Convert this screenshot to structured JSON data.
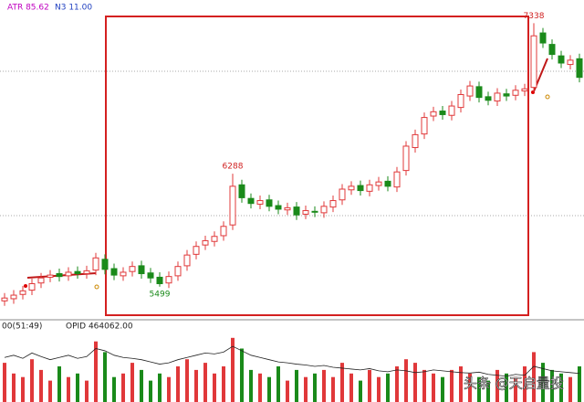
{
  "chart_data": {
    "type": "candlestick",
    "indicators": [
      "ATR 85.62",
      "N3 11.00"
    ],
    "lower_labels": [
      "00(51:49)",
      "OPID 464062.00"
    ],
    "watermark": "头条 @天启量投",
    "open": [
      5400,
      5415,
      5445,
      5475,
      5525,
      5565,
      5590,
      5575,
      5605,
      5590,
      5615,
      5690,
      5625,
      5575,
      5605,
      5645,
      5595,
      5565,
      5525,
      5575,
      5645,
      5725,
      5790,
      5815,
      5855,
      5930,
      6210,
      6115,
      6075,
      6105,
      6065,
      6035,
      6055,
      6005,
      6025,
      6015,
      6055,
      6105,
      6175,
      6205,
      6165,
      6205,
      6235,
      6195,
      6310,
      6470,
      6565,
      6690,
      6725,
      6695,
      6750,
      6830,
      6895,
      6825,
      6795,
      6845,
      6835,
      6865,
      6890,
      7270,
      7190,
      7110,
      7050,
      7090
    ],
    "high": [
      5455,
      5475,
      5505,
      5555,
      5595,
      5615,
      5625,
      5635,
      5640,
      5645,
      5735,
      5725,
      5660,
      5635,
      5675,
      5680,
      5630,
      5600,
      5605,
      5675,
      5755,
      5815,
      5855,
      5885,
      5955,
      6288,
      6245,
      6150,
      6135,
      6140,
      6100,
      6085,
      6090,
      6065,
      6060,
      6095,
      6135,
      6215,
      6235,
      6240,
      6245,
      6265,
      6270,
      6335,
      6515,
      6595,
      6715,
      6755,
      6760,
      6795,
      6875,
      6935,
      6930,
      6860,
      6885,
      6880,
      6905,
      6915,
      7338,
      7305,
      7225,
      7145,
      7115,
      7125
    ],
    "low": [
      5365,
      5380,
      5410,
      5440,
      5490,
      5530,
      5535,
      5540,
      5555,
      5555,
      5580,
      5585,
      5545,
      5540,
      5570,
      5555,
      5525,
      5499,
      5490,
      5540,
      5610,
      5690,
      5755,
      5780,
      5820,
      5895,
      6085,
      6045,
      6040,
      6025,
      6005,
      6000,
      5965,
      5970,
      5985,
      5980,
      6020,
      6070,
      6140,
      6135,
      6130,
      6170,
      6165,
      6160,
      6275,
      6435,
      6530,
      6655,
      6665,
      6660,
      6715,
      6795,
      6785,
      6765,
      6760,
      6795,
      6800,
      6830,
      6855,
      7165,
      7085,
      7025,
      7015,
      6925
    ],
    "close": [
      5420,
      5440,
      5470,
      5520,
      5560,
      5580,
      5570,
      5600,
      5590,
      5610,
      5700,
      5620,
      5580,
      5600,
      5640,
      5590,
      5560,
      5520,
      5570,
      5640,
      5720,
      5780,
      5820,
      5850,
      5920,
      6200,
      6120,
      6080,
      6100,
      6060,
      6040,
      6050,
      6000,
      6030,
      6020,
      6060,
      6100,
      6180,
      6200,
      6170,
      6210,
      6230,
      6200,
      6300,
      6480,
      6560,
      6680,
      6720,
      6700,
      6760,
      6840,
      6900,
      6820,
      6800,
      6850,
      6830,
      6870,
      6880,
      7250,
      7200,
      7120,
      7060,
      7080,
      6960
    ],
    "ylim": [
      5300,
      7500
    ],
    "annotations": [
      {
        "index": 17,
        "field": "low"
      },
      {
        "index": 25,
        "field": "high"
      },
      {
        "index": 58,
        "field": "high"
      }
    ],
    "up_color": "#e0383a",
    "down_color": "#1a8a1a",
    "volume": [
      55,
      40,
      35,
      60,
      45,
      30,
      50,
      35,
      40,
      30,
      85,
      70,
      35,
      40,
      55,
      45,
      30,
      40,
      35,
      50,
      60,
      45,
      55,
      40,
      50,
      90,
      75,
      45,
      40,
      35,
      50,
      30,
      45,
      35,
      40,
      45,
      35,
      55,
      40,
      30,
      45,
      35,
      40,
      50,
      60,
      55,
      45,
      40,
      35,
      45,
      50,
      40,
      35,
      30,
      45,
      40,
      35,
      50,
      70,
      55,
      45,
      40,
      35,
      50
    ],
    "opid": [
      500000,
      505000,
      498000,
      510000,
      502000,
      495000,
      500000,
      505000,
      498000,
      502000,
      520000,
      515000,
      505000,
      500000,
      498000,
      495000,
      490000,
      485000,
      488000,
      495000,
      500000,
      505000,
      510000,
      508000,
      512000,
      525000,
      515000,
      505000,
      500000,
      495000,
      490000,
      488000,
      485000,
      483000,
      480000,
      482000,
      478000,
      476000,
      474000,
      472000,
      475000,
      470000,
      468000,
      472000,
      470000,
      466000,
      468000,
      472000,
      470000,
      468000,
      466000,
      465000,
      467000,
      462000,
      460000,
      458000,
      462000,
      460000,
      480000,
      475000,
      470000,
      468000,
      466000,
      464062
    ],
    "volume_ylim": [
      0,
      100
    ],
    "opid_ylim": [
      400000,
      560000
    ]
  }
}
